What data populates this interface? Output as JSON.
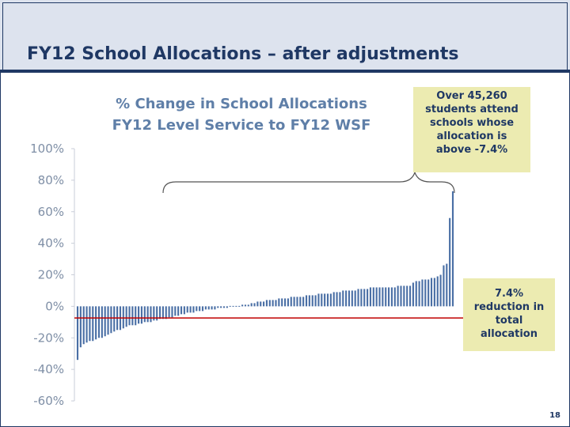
{
  "slide": {
    "title": "FY12 School Allocations – after adjustments",
    "page_number": "18"
  },
  "callouts": {
    "top": [
      "Over 45,260",
      "students attend",
      "schools whose",
      "allocation is",
      "above -7.4%"
    ],
    "bottom": [
      "7.4%",
      "reduction in",
      "total",
      "allocation"
    ]
  },
  "colors": {
    "title": "#1f3864",
    "bars": "#4a6fa5",
    "reference_line": "#c00000",
    "callout_bg": "#ecebb1",
    "chart_title": "#5f7fa8"
  },
  "chart_data": {
    "type": "bar",
    "title_lines": [
      "% Change in School Allocations",
      "FY12 Level Service to FY12 WSF"
    ],
    "y_tick_labels": [
      "100%",
      "80%",
      "60%",
      "40%",
      "20%",
      "0%",
      "-20%",
      "-40%",
      "-60%"
    ],
    "y_ticks": [
      100,
      80,
      60,
      40,
      20,
      0,
      -20,
      -40,
      -60
    ],
    "ylim": [
      -60,
      100
    ],
    "reference_line": -7.4,
    "grid": false,
    "legend": "none",
    "values": [
      -34,
      -26,
      -24,
      -23,
      -22,
      -22,
      -21,
      -20,
      -20,
      -19,
      -18,
      -17,
      -16,
      -15,
      -15,
      -14,
      -13,
      -12,
      -12,
      -12,
      -11,
      -11,
      -10,
      -10,
      -10,
      -9,
      -9,
      -8,
      -8,
      -8,
      -7,
      -7,
      -6,
      -6,
      -5,
      -5,
      -4,
      -4,
      -4,
      -3,
      -3,
      -3,
      -2,
      -2,
      -2,
      -2,
      -1,
      -1,
      -1,
      -1,
      0,
      0,
      0,
      0,
      1,
      1,
      1,
      2,
      2,
      3,
      3,
      3,
      4,
      4,
      4,
      4,
      5,
      5,
      5,
      5,
      6,
      6,
      6,
      6,
      6,
      7,
      7,
      7,
      7,
      8,
      8,
      8,
      8,
      8,
      9,
      9,
      9,
      10,
      10,
      10,
      10,
      10,
      11,
      11,
      11,
      11,
      12,
      12,
      12,
      12,
      12,
      12,
      12,
      12,
      12,
      13,
      13,
      13,
      13,
      13,
      15,
      16,
      16,
      17,
      17,
      17,
      18,
      18,
      19,
      20,
      26,
      27,
      56,
      73
    ]
  }
}
